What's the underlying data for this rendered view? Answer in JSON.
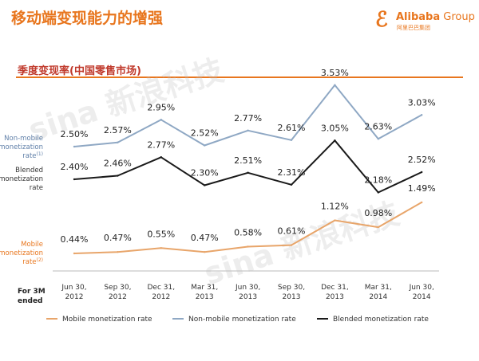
{
  "page": {
    "title": "移动端变现能力的增强",
    "subtitle": "季度变现率(中国零售市场)"
  },
  "logo": {
    "mark": "ℰ",
    "name": "Alibaba",
    "group": " Group",
    "chinese": "阿里巴巴集团"
  },
  "watermark": {
    "text1": "sina 新浪科技",
    "text2": "sina 新浪科技"
  },
  "colors": {
    "accent": "#e8761e",
    "non_mobile": "#8fa8c4",
    "blended": "#1a1a1a",
    "mobile": "#e8a56a"
  },
  "chart_data": {
    "type": "line",
    "x_header": [
      "For 3M",
      "ended"
    ],
    "categories": [
      [
        "Jun 30,",
        "2012"
      ],
      [
        "Sep 30,",
        "2012"
      ],
      [
        "Dec 31,",
        "2012"
      ],
      [
        "Mar 31,",
        "2013"
      ],
      [
        "Jun 30,",
        "2013"
      ],
      [
        "Sep 30,",
        "2013"
      ],
      [
        "Dec 31,",
        "2013"
      ],
      [
        "Mar 31,",
        "2014"
      ],
      [
        "Jun 30,",
        "2014"
      ]
    ],
    "series": [
      {
        "key": "non_mobile",
        "name": "Non-mobile monetization rate",
        "side_label": [
          "Non-mobile",
          "monetization",
          "rate"
        ],
        "side_sup": "(1)",
        "values": [
          2.5,
          2.57,
          2.95,
          2.52,
          2.77,
          2.61,
          3.53,
          2.63,
          3.03
        ],
        "labels": [
          "2.50%",
          "2.57%",
          "2.95%",
          "2.52%",
          "2.77%",
          "2.61%",
          "3.53%",
          "2.63%",
          "3.03%"
        ]
      },
      {
        "key": "blended",
        "name": "Blended monetization rate",
        "side_label": [
          "Blended",
          "monetization",
          "rate"
        ],
        "side_sup": "",
        "values": [
          2.4,
          2.46,
          2.77,
          2.3,
          2.51,
          2.31,
          3.05,
          2.18,
          2.52
        ],
        "labels": [
          "2.40%",
          "2.46%",
          "2.77%",
          "2.30%",
          "2.51%",
          "2.31%",
          "3.05%",
          "2.18%",
          "2.52%"
        ]
      },
      {
        "key": "mobile",
        "name": "Mobile monetization rate",
        "side_label": [
          "Mobile",
          "monetization",
          "rate"
        ],
        "side_sup": "(2)",
        "values": [
          0.44,
          0.47,
          0.55,
          0.47,
          0.58,
          0.61,
          1.12,
          0.98,
          1.49
        ],
        "labels": [
          "0.44%",
          "0.47%",
          "0.55%",
          "0.47%",
          "0.58%",
          "0.61%",
          "1.12%",
          "0.98%",
          "1.49%"
        ]
      }
    ],
    "legend_order": [
      "mobile",
      "non_mobile",
      "blended"
    ],
    "legend_position": "bottom",
    "grid": false
  }
}
